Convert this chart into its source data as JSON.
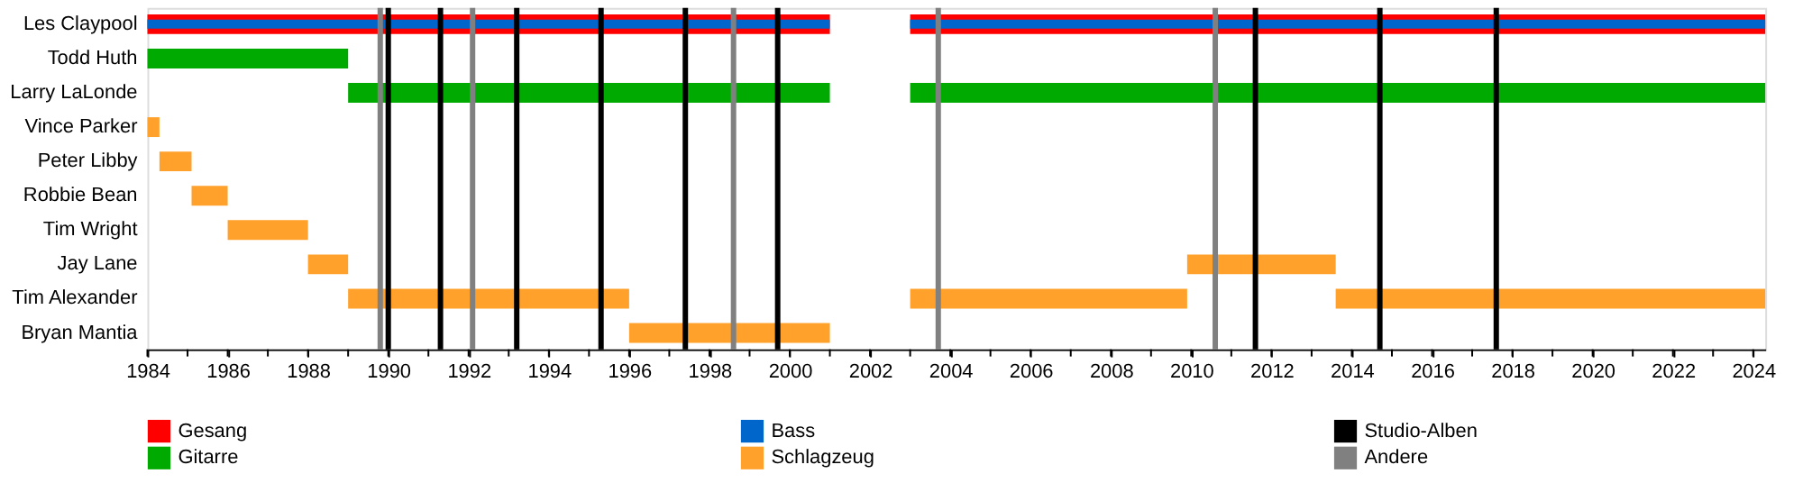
{
  "chart_data": {
    "type": "bar",
    "orientation": "horizontal",
    "categories": [
      "Les Claypool",
      "Todd Huth",
      "Larry LaLonde",
      "Vince Parker",
      "Peter Libby",
      "Robbie Bean",
      "Tim Wright",
      "Jay Lane",
      "Tim Alexander",
      "Bryan Mantia"
    ],
    "series": [
      {
        "name": "Gesang",
        "color": "#ff0000",
        "values": [
          17,
          null,
          null,
          null,
          null,
          null,
          null,
          null,
          null,
          null
        ],
        "base": [
          1984,
          null,
          null,
          null,
          null,
          null,
          null,
          null,
          null,
          null
        ]
      },
      {
        "color": "#ff0000",
        "values": [
          21.3,
          null,
          null,
          null,
          null,
          null,
          null,
          null,
          null,
          null
        ],
        "base": [
          2003,
          null,
          null,
          null,
          null,
          null,
          null,
          null,
          null,
          null
        ]
      },
      {
        "name": "Gitarre",
        "color": "#00aa00",
        "values": [
          null,
          5,
          12,
          null,
          null,
          null,
          null,
          null,
          null,
          null
        ],
        "base": [
          null,
          1984,
          1989,
          null,
          null,
          null,
          null,
          null,
          null,
          null
        ]
      },
      {
        "color": "#00aa00",
        "values": [
          null,
          null,
          21.3,
          null,
          null,
          null,
          null,
          null,
          null,
          null
        ],
        "base": [
          null,
          null,
          2003,
          null,
          null,
          null,
          null,
          null,
          null,
          null
        ]
      },
      {
        "name": "Bass",
        "color": "#0066cc",
        "values": [
          17,
          null,
          null,
          null,
          null,
          null,
          null,
          null,
          null,
          null
        ],
        "base": [
          1984,
          null,
          null,
          null,
          null,
          null,
          null,
          null,
          null,
          null
        ]
      },
      {
        "color": "#0066cc",
        "values": [
          21.3,
          null,
          null,
          null,
          null,
          null,
          null,
          null,
          null,
          null
        ],
        "base": [
          2003,
          null,
          null,
          null,
          null,
          null,
          null,
          null,
          null,
          null
        ]
      },
      {
        "name": "Schlagzeug",
        "color": "#ffa12b",
        "values": [
          null,
          null,
          null,
          0.3,
          0.8,
          0.9,
          2,
          1,
          7,
          5
        ],
        "base": [
          null,
          null,
          null,
          1984,
          1984.3,
          1985.1,
          1986,
          1988,
          1989,
          1996
        ]
      },
      {
        "color": "#ffa12b",
        "values": [
          null,
          null,
          null,
          null,
          null,
          null,
          null,
          3.7,
          6.9,
          null
        ],
        "base": [
          null,
          null,
          null,
          null,
          null,
          null,
          null,
          2009.9,
          2003,
          null
        ]
      },
      {
        "color": "#ffa12b",
        "values": [
          null,
          null,
          null,
          null,
          null,
          null,
          null,
          null,
          10.7,
          null
        ],
        "base": [
          null,
          null,
          null,
          null,
          null,
          null,
          null,
          null,
          2013.6,
          null
        ]
      }
    ],
    "ref_lines": [
      {
        "axis": "x",
        "value": 1990.0,
        "color": "#000000",
        "label": "Studio-Alben"
      },
      {
        "axis": "x",
        "value": 1991.3,
        "color": "#000000"
      },
      {
        "axis": "x",
        "value": 1993.2,
        "color": "#000000"
      },
      {
        "axis": "x",
        "value": 1995.3,
        "color": "#000000"
      },
      {
        "axis": "x",
        "value": 1997.4,
        "color": "#000000"
      },
      {
        "axis": "x",
        "value": 1999.7,
        "color": "#000000"
      },
      {
        "axis": "x",
        "value": 2011.6,
        "color": "#000000"
      },
      {
        "axis": "x",
        "value": 2014.7,
        "color": "#000000"
      },
      {
        "axis": "x",
        "value": 2017.6,
        "color": "#000000"
      },
      {
        "axis": "x",
        "value": 1989.8,
        "color": "#808080",
        "label": "Andere"
      },
      {
        "axis": "x",
        "value": 1992.1,
        "color": "#808080"
      },
      {
        "axis": "x",
        "value": 1998.6,
        "color": "#808080"
      },
      {
        "axis": "x",
        "value": 2003.7,
        "color": "#808080"
      },
      {
        "axis": "x",
        "value": 2010.6,
        "color": "#808080"
      }
    ],
    "xlim": [
      1984,
      2024.3
    ],
    "xticks": [
      1984,
      {
        "value": 1985,
        "label": null
      },
      1986,
      {
        "value": 1987,
        "label": null
      },
      1988,
      {
        "value": 1989,
        "label": null
      },
      1990,
      {
        "value": 1991,
        "label": null
      },
      1992,
      {
        "value": 1993,
        "label": null
      },
      1994,
      {
        "value": 1995,
        "label": null
      },
      1996,
      {
        "value": 1997,
        "label": null
      },
      1998,
      {
        "value": 1999,
        "label": null
      },
      2000,
      {
        "value": 2001,
        "label": null
      },
      2002,
      {
        "value": 2003,
        "label": null
      },
      2004,
      {
        "value": 2005,
        "label": null
      },
      2006,
      {
        "value": 2007,
        "label": null
      },
      2008,
      {
        "value": 2009,
        "label": null
      },
      2010,
      {
        "value": 2011,
        "label": null
      },
      2012,
      {
        "value": 2013,
        "label": null
      },
      2014,
      {
        "value": 2015,
        "label": null
      },
      2016,
      {
        "value": 2017,
        "label": null
      },
      2018,
      {
        "value": 2019,
        "label": null
      },
      2020,
      {
        "value": 2021,
        "label": null
      },
      2022,
      {
        "value": 2023,
        "label": null
      },
      2024
    ],
    "legend": "bottom",
    "grid": false
  }
}
